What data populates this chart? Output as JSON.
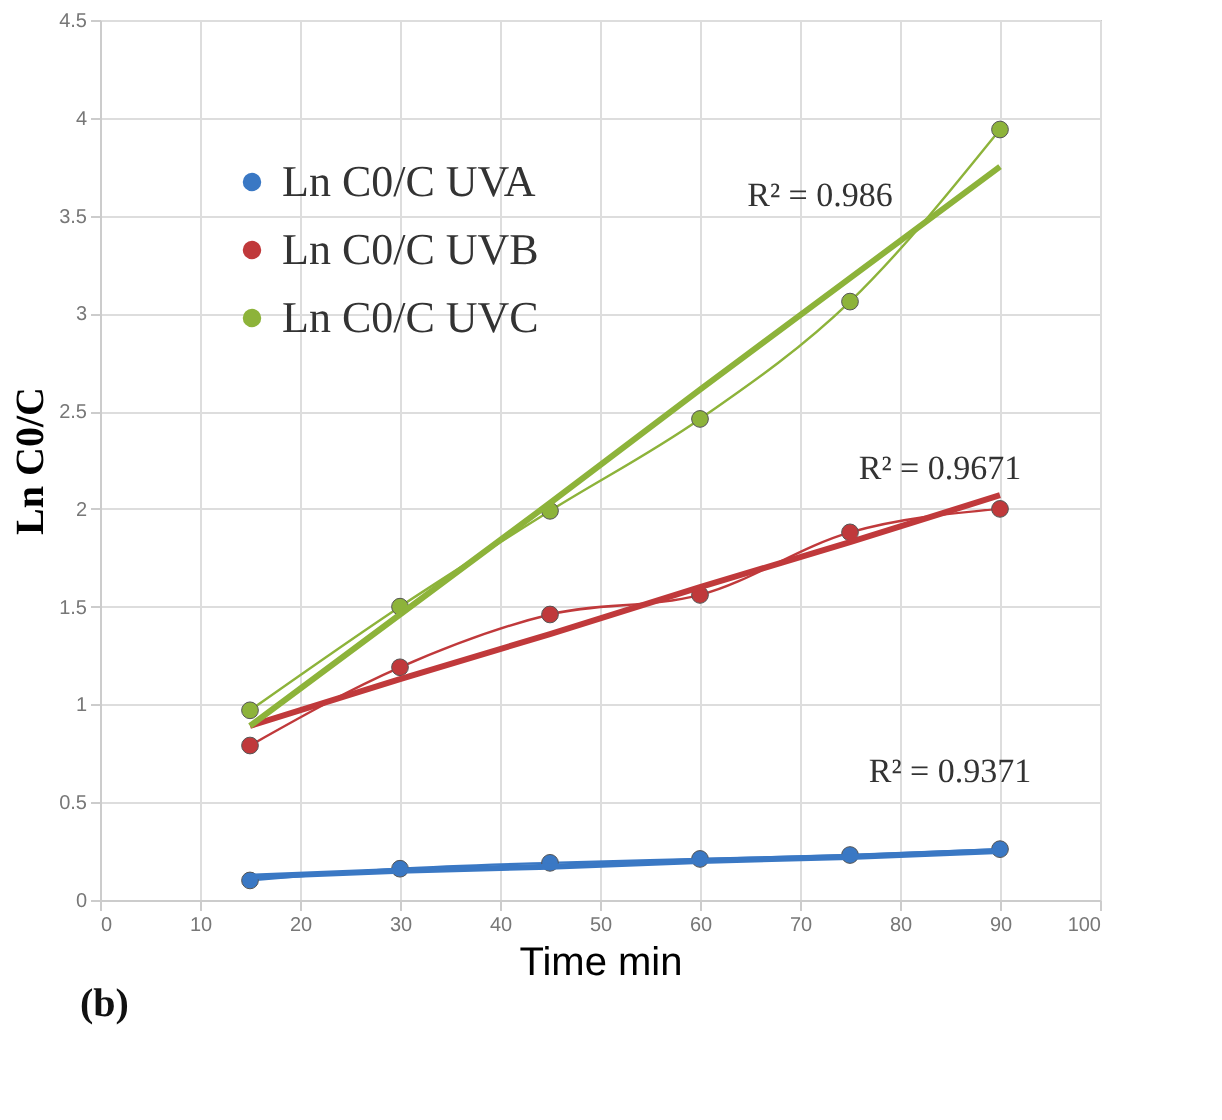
{
  "chart_data": {
    "type": "line",
    "xlabel": "Time min",
    "ylabel": "Ln C0/C",
    "xlim": [
      0,
      100
    ],
    "xticks": [
      0,
      10,
      20,
      30,
      40,
      50,
      60,
      70,
      80,
      90,
      100
    ],
    "ylim": [
      0,
      4.5
    ],
    "yticks": [
      0,
      0.5,
      1,
      1.5,
      2,
      2.5,
      3,
      3.5,
      4,
      4.5
    ],
    "grid": true,
    "legend": "top left",
    "marker": "circle",
    "x": [
      15,
      30,
      45,
      60,
      75,
      90
    ],
    "series": [
      {
        "name": "Ln C0/C UVA",
        "color": "#3a78c4",
        "values": [
          0.1,
          0.16,
          0.19,
          0.21,
          0.23,
          0.26
        ]
      },
      {
        "name": "Ln C0/C UVB",
        "color": "#c0393b",
        "values": [
          0.79,
          1.19,
          1.46,
          1.56,
          1.88,
          2.0
        ]
      },
      {
        "name": "Ln C0/C UVC",
        "color": "#8db33a",
        "values": [
          0.97,
          1.5,
          1.99,
          2.46,
          3.06,
          3.94
        ]
      },
      {
        "type": "line",
        "color": "#3a78c4",
        "marker": "none",
        "values": [
          0.12,
          0.15,
          0.17,
          0.2,
          0.22,
          0.25
        ]
      },
      {
        "type": "line",
        "color": "#c0393b",
        "marker": "none",
        "values": [
          0.89,
          1.13,
          1.36,
          1.6,
          1.83,
          2.07
        ]
      },
      {
        "type": "line",
        "color": "#8db33a",
        "marker": "none",
        "values": [
          0.89,
          1.46,
          2.03,
          2.61,
          3.18,
          3.75
        ]
      }
    ],
    "annotations": [
      "R² = 0.986",
      "R² = 0.9671",
      "R² = 0.9371",
      "(b)"
    ]
  }
}
